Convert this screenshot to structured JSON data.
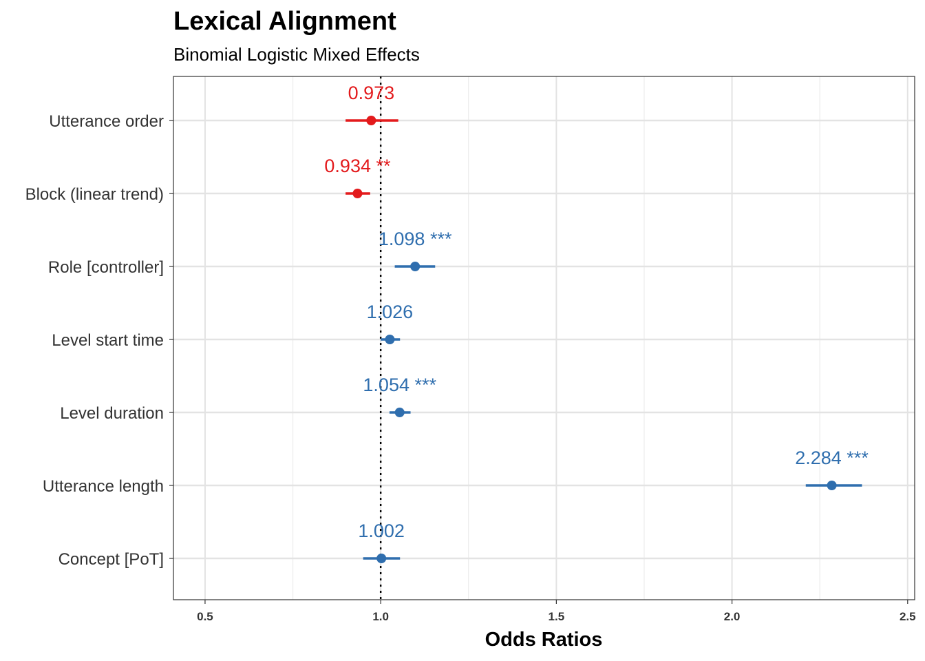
{
  "chart_data": {
    "type": "forest",
    "title": "Lexical Alignment",
    "subtitle": "Binomial Logistic Mixed Effects",
    "xlabel": "Odds Ratios",
    "xlim": [
      0.41,
      2.52
    ],
    "xticks": [
      "0.5",
      "1.0",
      "1.5",
      "2.0",
      "2.5"
    ],
    "reference_line": 1.0,
    "grid": true,
    "colors": {
      "negative": "#E31A1C",
      "positive": "#2F6EAE"
    },
    "terms": [
      {
        "label": "Utterance order",
        "estimate": 0.973,
        "ci": [
          0.9,
          1.05
        ],
        "value_label": "0.973",
        "direction": "negative"
      },
      {
        "label": "Block (linear trend)",
        "estimate": 0.934,
        "ci": [
          0.9,
          0.97
        ],
        "value_label": "0.934 **",
        "direction": "negative"
      },
      {
        "label": "Role [controller]",
        "estimate": 1.098,
        "ci": [
          1.04,
          1.155
        ],
        "value_label": "1.098 ***",
        "direction": "positive"
      },
      {
        "label": "Level start time",
        "estimate": 1.026,
        "ci": [
          1.0,
          1.055
        ],
        "value_label": "1.026",
        "direction": "positive"
      },
      {
        "label": "Level duration",
        "estimate": 1.054,
        "ci": [
          1.025,
          1.085
        ],
        "value_label": "1.054 ***",
        "direction": "positive"
      },
      {
        "label": "Utterance length",
        "estimate": 2.284,
        "ci": [
          2.21,
          2.37
        ],
        "value_label": "2.284 ***",
        "direction": "positive"
      },
      {
        "label": "Concept [PoT]",
        "estimate": 1.002,
        "ci": [
          0.95,
          1.055
        ],
        "value_label": "1.002",
        "direction": "positive"
      }
    ]
  }
}
